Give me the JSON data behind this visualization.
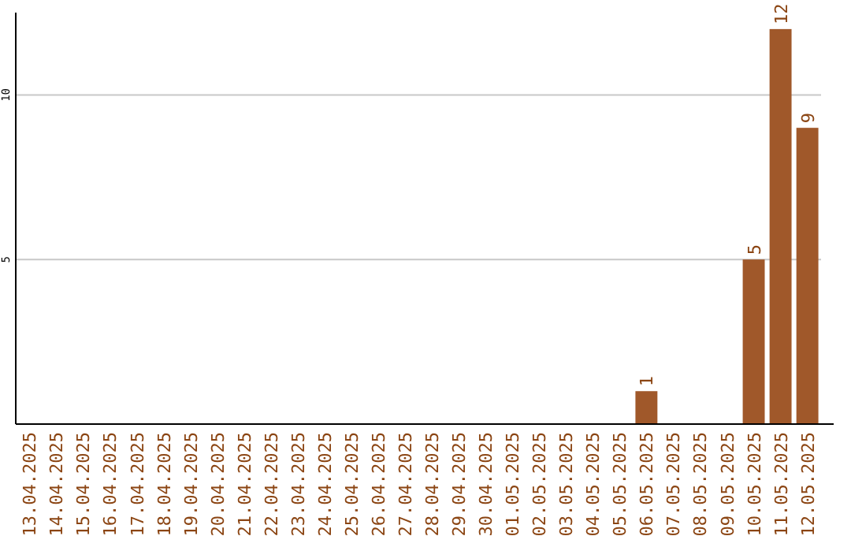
{
  "chart_data": {
    "type": "bar",
    "categories": [
      "13.04.2025",
      "14.04.2025",
      "15.04.2025",
      "16.04.2025",
      "17.04.2025",
      "18.04.2025",
      "19.04.2025",
      "20.04.2025",
      "21.04.2025",
      "22.04.2025",
      "23.04.2025",
      "24.04.2025",
      "25.04.2025",
      "26.04.2025",
      "27.04.2025",
      "28.04.2025",
      "29.04.2025",
      "30.04.2025",
      "01.05.2025",
      "02.05.2025",
      "03.05.2025",
      "04.05.2025",
      "05.05.2025",
      "06.05.2025",
      "07.05.2025",
      "08.05.2025",
      "09.05.2025",
      "10.05.2025",
      "11.05.2025",
      "12.05.2025"
    ],
    "values": [
      0,
      0,
      0,
      0,
      0,
      0,
      0,
      0,
      0,
      0,
      0,
      0,
      0,
      0,
      0,
      0,
      0,
      0,
      0,
      0,
      0,
      0,
      0,
      1,
      0,
      0,
      0,
      5,
      12,
      9
    ],
    "value_labels": [
      null,
      null,
      null,
      null,
      null,
      null,
      null,
      null,
      null,
      null,
      null,
      null,
      null,
      null,
      null,
      null,
      null,
      null,
      null,
      null,
      null,
      null,
      null,
      "1",
      null,
      null,
      null,
      "5",
      "12",
      "9"
    ],
    "color": "#a0582a",
    "ylim": [
      0,
      12.5
    ],
    "yticks": [
      5,
      10
    ],
    "grid": "y"
  }
}
